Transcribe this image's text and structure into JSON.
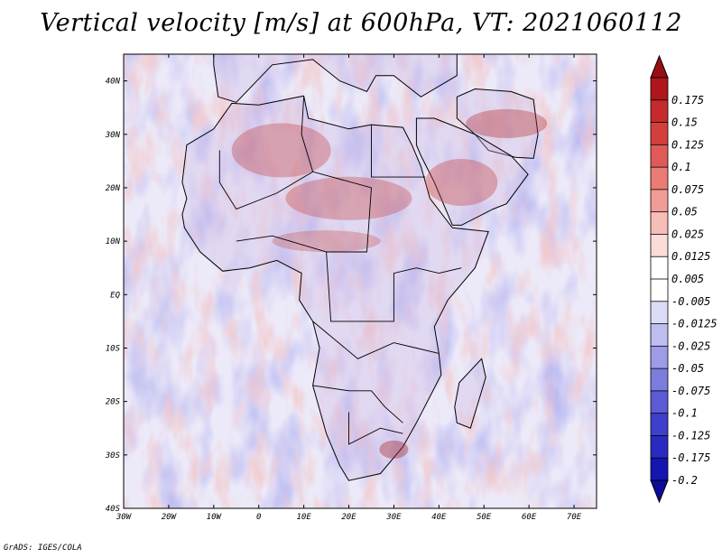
{
  "title": "Vertical velocity [m/s] at 600hPa, VT: 2021060112",
  "footer": "GrADS: IGES/COLA",
  "map": {
    "lon_range": [
      -30,
      75
    ],
    "lat_range": [
      -40,
      45
    ],
    "lon_ticks": [
      "30W",
      "20W",
      "10W",
      "0",
      "10E",
      "20E",
      "30E",
      "40E",
      "50E",
      "60E",
      "70E"
    ],
    "lon_tick_values": [
      -30,
      -20,
      -10,
      0,
      10,
      20,
      30,
      40,
      50,
      60,
      70
    ],
    "lat_ticks": [
      "40N",
      "30N",
      "20N",
      "10N",
      "EQ",
      "10S",
      "20S",
      "30S",
      "40S"
    ],
    "lat_tick_values": [
      40,
      30,
      20,
      10,
      0,
      -10,
      -20,
      -30,
      -40
    ]
  },
  "colorbar": {
    "labels": [
      "0.175",
      "0.15",
      "0.125",
      "0.1",
      "0.075",
      "0.05",
      "0.025",
      "0.0125",
      "0.005",
      "-0.005",
      "-0.0125",
      "-0.025",
      "-0.05",
      "-0.075",
      "-0.1",
      "-0.125",
      "-0.175",
      "-0.2"
    ],
    "colors": [
      "#b0151c",
      "#c52a2c",
      "#d43f3e",
      "#e05b58",
      "#e97c75",
      "#f19c95",
      "#f7bdb7",
      "#fbdcd9",
      "#ffffff",
      "#ffffff",
      "#dcdcf7",
      "#bdbdef",
      "#9c9ce7",
      "#7c7cde",
      "#5b5bd5",
      "#3f3fcc",
      "#2a2ac2",
      "#1515b0"
    ],
    "top_arrow_color": "#9a0d12",
    "bottom_arrow_color": "#0b0b9a"
  }
}
